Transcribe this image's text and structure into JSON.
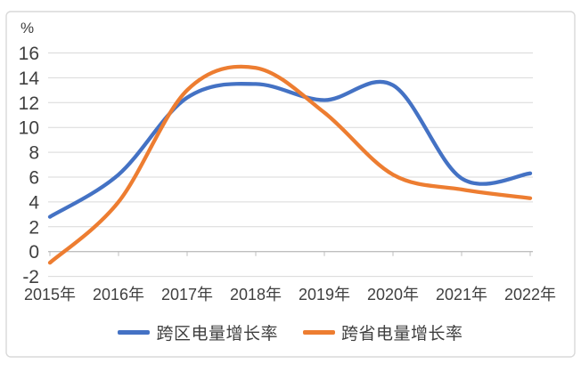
{
  "chart_data": {
    "type": "line",
    "line_style": "smooth",
    "unit_label": "%",
    "categories": [
      "2015年",
      "2016年",
      "2017年",
      "2018年",
      "2019年",
      "2020年",
      "2021年",
      "2022年"
    ],
    "series": [
      {
        "name": "跨区电量增长率",
        "color": "#4472C4",
        "values": [
          2.8,
          6.2,
          12.4,
          13.5,
          12.2,
          13.4,
          5.9,
          6.3
        ]
      },
      {
        "name": "跨省电量增长率",
        "color": "#ED7D31",
        "values": [
          -0.9,
          4.0,
          13.0,
          14.8,
          11.2,
          6.2,
          5.0,
          4.3
        ]
      }
    ],
    "y_axis": {
      "min": -2,
      "max": 16,
      "step": 2,
      "tick_labels": [
        "16",
        "14",
        "12",
        "10",
        "8",
        "6",
        "4",
        "2",
        "0",
        "-2"
      ]
    },
    "grid": true,
    "legend_position": "bottom",
    "colors": {
      "gridline": "#d9d9d9",
      "zero_axis": "#bfbfbf",
      "tick": "#bfbfbf",
      "text": "#3f3f3f",
      "frame": "#d9d9d9"
    }
  }
}
